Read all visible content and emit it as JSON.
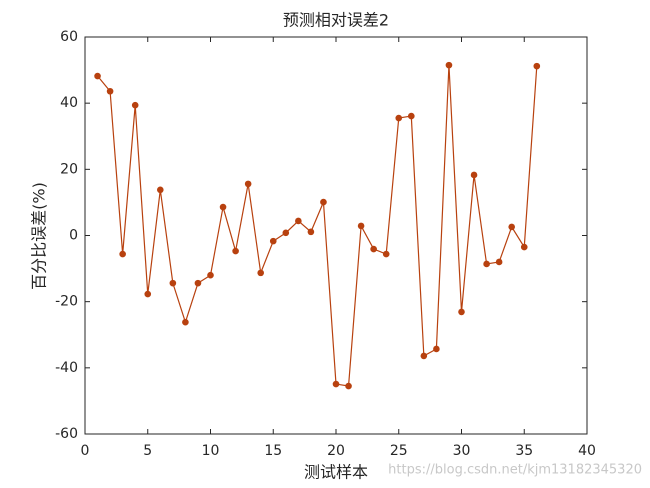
{
  "chart_data": {
    "type": "line",
    "title": "预测相对误差2",
    "x_label": "测试样本",
    "y_label": "百分比误差(%)",
    "watermark": "https://blog.csdn.net/kjm13182345320",
    "x": [
      1,
      2,
      3,
      4,
      5,
      6,
      7,
      8,
      9,
      10,
      11,
      12,
      13,
      14,
      15,
      16,
      17,
      18,
      19,
      20,
      21,
      22,
      23,
      24,
      25,
      26,
      27,
      28,
      29,
      30,
      31,
      32,
      33,
      34,
      35,
      36
    ],
    "series": [
      {
        "color": "#b8410f",
        "values": [
          48.2,
          43.6,
          -5.6,
          39.4,
          -17.7,
          13.8,
          -14.4,
          -26.2,
          -14.4,
          -12,
          8.6,
          -4.7,
          15.6,
          -11.3,
          -1.7,
          0.8,
          4.4,
          1.1,
          10.1,
          -44.9,
          -45.5,
          2.9,
          -4.1,
          -5.6,
          35.5,
          36.1,
          -36.4,
          -34.3,
          51.5,
          -23.1,
          18.3,
          -8.6,
          -8,
          2.6,
          -3.5,
          51.2
        ]
      }
    ],
    "xlim": [
      0,
      40
    ],
    "xticks": [
      0,
      5,
      10,
      15,
      20,
      25,
      30,
      35,
      40
    ],
    "ylim": [
      -60,
      60
    ],
    "yticks": [
      -60,
      -40,
      -20,
      0,
      20,
      40,
      60
    ],
    "grid": false
  }
}
